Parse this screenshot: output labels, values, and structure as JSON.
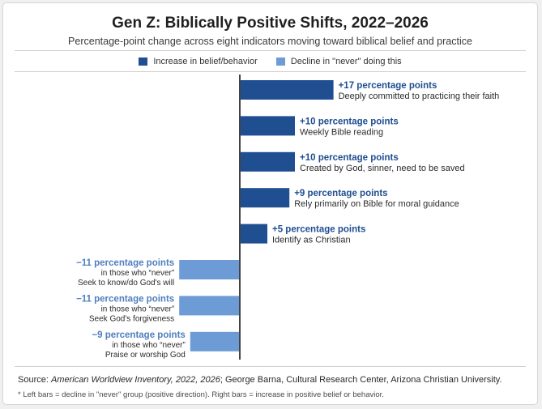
{
  "colors": {
    "increase": "#1f4e91",
    "decline": "#6d9bd6",
    "axis": "#444444"
  },
  "chart_data": {
    "type": "bar",
    "orientation": "horizontal",
    "title": "Gen Z: Biblically Positive Shifts, 2022–2026",
    "subtitle": "Percentage-point change across eight indicators moving toward biblical belief and practice",
    "legend": [
      {
        "label": "Increase in belief/behavior",
        "color": "#1f4e91"
      },
      {
        "label": "Decline in \"never\" doing this",
        "color": "#6d9bd6"
      }
    ],
    "legend_position": "top",
    "series": [
      {
        "name": "Increase in belief/behavior",
        "items": [
          {
            "value": 17,
            "value_label": "+17 percentage points",
            "category": "Deeply committed to practicing their faith"
          },
          {
            "value": 10,
            "value_label": "+10 percentage points",
            "category": "Weekly Bible reading"
          },
          {
            "value": 10,
            "value_label": "+10 percentage points",
            "category": "Created by God, sinner, need to be saved"
          },
          {
            "value": 9,
            "value_label": "+9 percentage points",
            "category": "Rely primarily on Bible for moral guidance"
          },
          {
            "value": 5,
            "value_label": "+5 percentage points",
            "category": "Identify as Christian"
          }
        ]
      },
      {
        "name": "Decline in \"never\" doing this",
        "items": [
          {
            "value": -11,
            "value_label": "−11 percentage points",
            "qualifier": "in those who “never”",
            "category": "Seek to know/do God's will"
          },
          {
            "value": -11,
            "value_label": "−11 percentage points",
            "qualifier": "in those who “never”",
            "category": "Seek God's forgiveness"
          },
          {
            "value": -9,
            "value_label": "−9 percentage points",
            "qualifier": "in those who “never”",
            "category": "Praise or worship God"
          }
        ]
      }
    ],
    "grid": false
  },
  "footer": {
    "source_prefix": "Source: ",
    "source_title": "American Worldview Inventory, 2022, 2026",
    "source_rest": "; George Barna, Cultural Research Center, Arizona Christian University.",
    "note": "* Left bars = decline in \"never\" group (positive direction). Right bars = increase in positive belief or behavior."
  }
}
